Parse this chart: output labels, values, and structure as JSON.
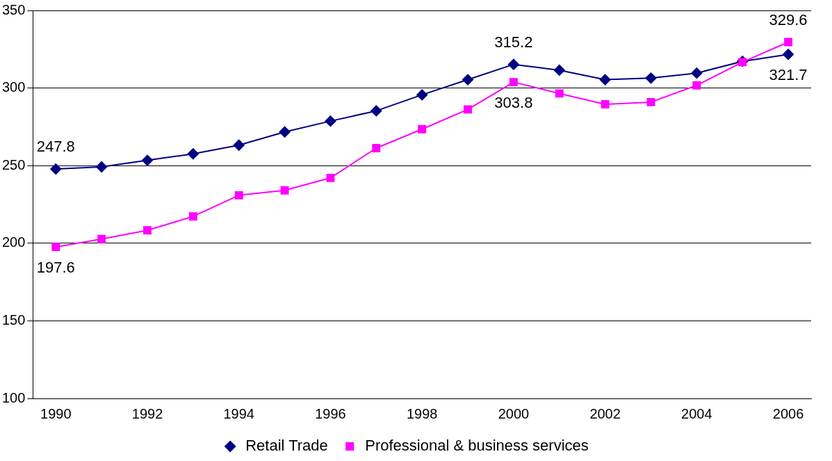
{
  "chart_data": {
    "type": "line",
    "categories": [
      "1990",
      null,
      "1992",
      null,
      "1994",
      null,
      "1996",
      null,
      "1998",
      null,
      "2000",
      null,
      "2002",
      null,
      "2004",
      null,
      "2006"
    ],
    "series": [
      {
        "name": "Retail Trade",
        "color": "#000080",
        "marker": "diamond",
        "values": [
          247.8,
          249.2,
          253.4,
          257.6,
          263.2,
          271.7,
          278.7,
          285.3,
          295.6,
          305.4,
          315.2,
          311.5,
          305.4,
          306.4,
          309.6,
          317.2,
          321.7
        ],
        "value_labels": [
          "247.8",
          null,
          null,
          null,
          null,
          null,
          null,
          null,
          null,
          null,
          "315.2",
          null,
          null,
          null,
          null,
          null,
          "321.7"
        ]
      },
      {
        "name": "Professional & business services",
        "color": "#ff00ff",
        "marker": "square",
        "values": [
          197.6,
          202.7,
          208.3,
          217.3,
          230.9,
          234.1,
          242.1,
          261.3,
          273.5,
          286.2,
          303.8,
          296.5,
          289.5,
          290.9,
          301.7,
          316.7,
          329.6
        ],
        "value_labels": [
          "197.6",
          null,
          null,
          null,
          null,
          null,
          null,
          null,
          null,
          null,
          "303.8",
          null,
          null,
          null,
          null,
          null,
          "329.6"
        ]
      }
    ],
    "ylim": [
      100,
      350
    ],
    "yticks": [
      100,
      150,
      200,
      250,
      300,
      350
    ],
    "grid": "y",
    "legend": "bottom"
  }
}
